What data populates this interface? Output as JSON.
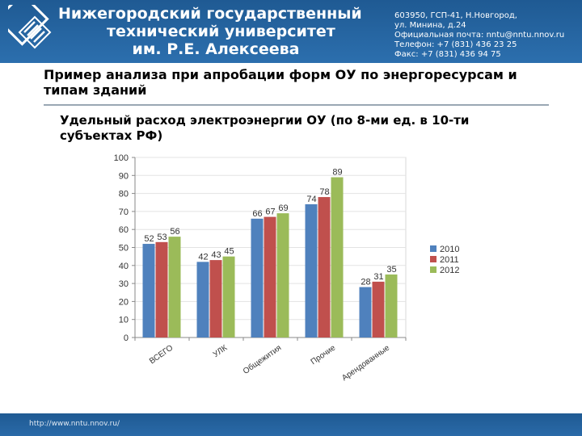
{
  "header": {
    "university_lines": [
      "Нижегородский государственный",
      "технический университет",
      "им. Р.Е. Алексеева"
    ],
    "contacts": [
      "603950, ГСП-41, Н.Новгород,",
      "ул. Минина, д.24",
      "Официальная почта: nntu@nntu.nnov.ru",
      "Телефон: +7 (831) 436 23 25",
      "Факс: +7 (831) 436 94 75"
    ]
  },
  "heading": "Пример анализа при апробации форм ОУ по энергоресурсам и типам зданий",
  "subtitle": "Удельный расход электроэнергии ОУ (по 8-ми  ед. в 10-ти субъектах РФ)",
  "footer": {
    "url": "http://www.nntu.nnov.ru/"
  },
  "chart_data": {
    "type": "bar",
    "categories": [
      "ВСЕГО",
      "УЛК",
      "Общежития",
      "Прочие",
      "Арендованные"
    ],
    "series": [
      {
        "name": "2010",
        "color": "#4f81bd",
        "values": [
          52,
          42,
          66,
          74,
          28
        ]
      },
      {
        "name": "2011",
        "color": "#c0504d",
        "values": [
          53,
          43,
          67,
          78,
          31
        ]
      },
      {
        "name": "2012",
        "color": "#9bbb59",
        "values": [
          56,
          45,
          69,
          89,
          35
        ]
      }
    ],
    "ylim": [
      0,
      100
    ],
    "yticks": [
      0,
      10,
      20,
      30,
      40,
      50,
      60,
      70,
      80,
      90,
      100
    ],
    "legend_position": "right",
    "data_labels": true
  }
}
